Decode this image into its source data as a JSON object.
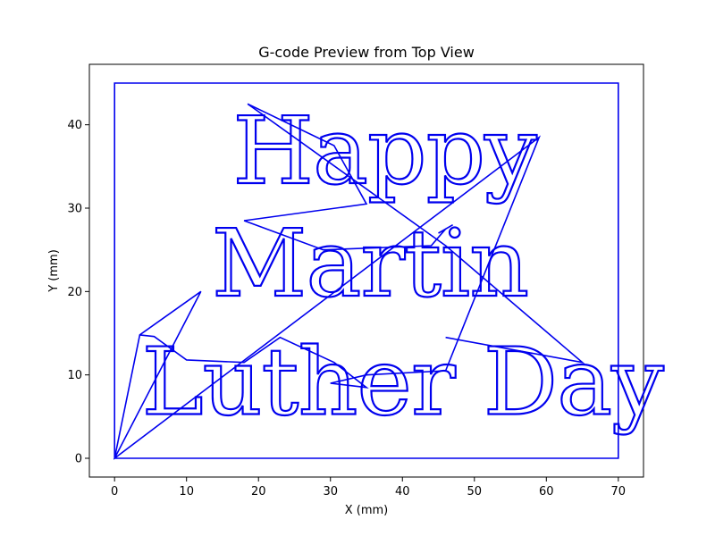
{
  "chart_data": {
    "type": "line",
    "title": "G-code Preview from Top View",
    "xlabel": "X (mm)",
    "ylabel": "Y (mm)",
    "xlim": [
      -3.5,
      73.5
    ],
    "ylim": [
      -2.25,
      47.25
    ],
    "xticks": [
      0,
      10,
      20,
      30,
      40,
      50,
      60,
      70
    ],
    "yticks": [
      0,
      10,
      20,
      30,
      40
    ],
    "grid": false,
    "line_color": "#0000ee",
    "text_lines": [
      {
        "text": "Happy",
        "x_center": 37.5,
        "baseline_y": 33.0
      },
      {
        "text": "Martin",
        "x_center": 35.5,
        "baseline_y": 19.5
      },
      {
        "text": "Luther Day",
        "x_center": 40.0,
        "baseline_y": 5.3
      }
    ],
    "series": [
      {
        "x": [
          0,
          0,
          70,
          70,
          0,
          12,
          3.5,
          0,
          59,
          46,
          35,
          30,
          35,
          30.5,
          23,
          18,
          10,
          5.5,
          3.5
        ],
        "y": [
          0,
          45,
          45,
          0,
          0,
          20,
          14.8,
          0,
          38.5,
          10.5,
          10.0,
          9.0,
          8.5,
          11.5,
          14.5,
          11.5,
          11.8,
          14.6,
          14.8
        ]
      },
      {
        "x": [
          18.5,
          46,
          65,
          46
        ],
        "y": [
          42.5,
          25.5,
          11.5,
          14.5
        ]
      },
      {
        "x": [
          18.5,
          30.5,
          35,
          18,
          29,
          44,
          46,
          47,
          45
        ],
        "y": [
          42.5,
          37.5,
          30.5,
          28.5,
          25.0,
          25.5,
          27.5,
          28.0,
          27.0
        ]
      }
    ]
  }
}
